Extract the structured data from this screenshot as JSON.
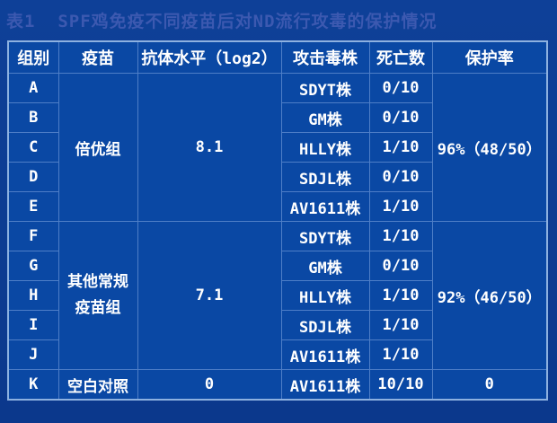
{
  "title": "表1  SPF鸡免疫不同疫苗后对ND流行攻毒的保护情况",
  "colors": {
    "page_background": "#0c3c92",
    "cell_background": "#0a48a4",
    "grid_line": "#4e7ec7",
    "outer_border": "#8db1e0",
    "title_text": "#3c59b0",
    "table_text": "#ffffff"
  },
  "table": {
    "headers": [
      "组别",
      "疫苗",
      "抗体水平（log2）",
      "攻击毒株",
      "死亡数",
      "保护率"
    ],
    "groups": [
      {
        "vaccine": "倍优组",
        "antibody": "8.1",
        "protection": "96%（48/50）",
        "rows": [
          {
            "group": "A",
            "strain": "SDYT株",
            "deaths": "0/10"
          },
          {
            "group": "B",
            "strain": "GM株",
            "deaths": "0/10"
          },
          {
            "group": "C",
            "strain": "HLLY株",
            "deaths": "1/10"
          },
          {
            "group": "D",
            "strain": "SDJL株",
            "deaths": "0/10"
          },
          {
            "group": "E",
            "strain": "AV1611株",
            "deaths": "1/10"
          }
        ]
      },
      {
        "vaccine": "其他常规疫苗组",
        "antibody": "7.1",
        "protection": "92%（46/50）",
        "rows": [
          {
            "group": "F",
            "strain": "SDYT株",
            "deaths": "1/10"
          },
          {
            "group": "G",
            "strain": "GM株",
            "deaths": "0/10"
          },
          {
            "group": "H",
            "strain": "HLLY株",
            "deaths": "1/10"
          },
          {
            "group": "I",
            "strain": "SDJL株",
            "deaths": "1/10"
          },
          {
            "group": "J",
            "strain": "AV1611株",
            "deaths": "1/10"
          }
        ]
      },
      {
        "vaccine": "空白对照",
        "antibody": "0",
        "protection": "0",
        "rows": [
          {
            "group": "K",
            "strain": "AV1611株",
            "deaths": "10/10"
          }
        ]
      }
    ]
  }
}
